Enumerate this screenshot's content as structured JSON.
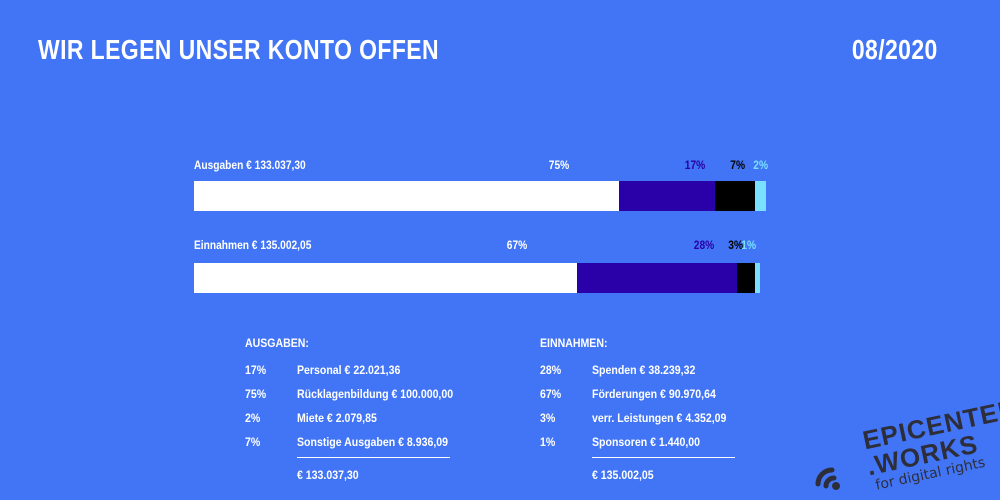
{
  "header": {
    "title": "WIR LEGEN UNSER KONTO OFFEN",
    "date": "08/2020"
  },
  "chart_data": {
    "type": "bar",
    "orientation": "horizontal-stacked",
    "xlim": [
      0,
      100
    ],
    "bars": [
      {
        "label": "Ausgaben  € 133.037,30",
        "segments": [
          {
            "pct_label": "75%",
            "value": 75,
            "color": "#ffffff",
            "label_color": "#ffffff"
          },
          {
            "pct_label": "17%",
            "value": 17,
            "color": "#2a00a8",
            "label_color": "#2a00a8"
          },
          {
            "pct_label": "7%",
            "value": 7,
            "color": "#000000",
            "label_color": "#000000"
          },
          {
            "pct_label": "2%",
            "value": 2,
            "color": "#79e0ff",
            "label_color": "#79e0ff"
          }
        ]
      },
      {
        "label": "Einnahmen € 135.002,05",
        "segments": [
          {
            "pct_label": "67%",
            "value": 67,
            "color": "#ffffff",
            "label_color": "#ffffff"
          },
          {
            "pct_label": "28%",
            "value": 28,
            "color": "#2a00a8",
            "label_color": "#2a00a8"
          },
          {
            "pct_label": "3%",
            "value": 3,
            "color": "#000000",
            "label_color": "#000000"
          },
          {
            "pct_label": "1%",
            "value": 1,
            "color": "#79e0ff",
            "label_color": "#79e0ff"
          }
        ]
      }
    ]
  },
  "ausgaben": {
    "heading": "AUSGABEN:",
    "items": [
      {
        "pct": "17%",
        "text": "Personal € 22.021,36"
      },
      {
        "pct": "75%",
        "text": "Rücklagenbildung € 100.000,00"
      },
      {
        "pct": "2%",
        "text": "Miete € 2.079,85"
      },
      {
        "pct": "7%",
        "text": "Sonstige Ausgaben € 8.936,09"
      }
    ],
    "total": "€ 133.037,30"
  },
  "einnahmen": {
    "heading": "EINNAHMEN:",
    "items": [
      {
        "pct": "28%",
        "text": "Spenden € 38.239,32"
      },
      {
        "pct": "67%",
        "text": "Förderungen € 90.970,64"
      },
      {
        "pct": "3%",
        "text": "verr. Leistungen € 4.352,09"
      },
      {
        "pct": "1%",
        "text": "Sponsoren € 1.440,00"
      }
    ],
    "total": "€ 135.002,05"
  },
  "logo": {
    "line1": "EPICENTER",
    "line2": ".WORKS",
    "tagline": "for digital rights",
    "icon": "signal-waves-icon"
  },
  "colors": {
    "background": "#4175f5",
    "white": "#ffffff",
    "indigo": "#2a00a8",
    "black": "#000000",
    "cyan": "#79e0ff",
    "logo": "#2e2e3a"
  }
}
